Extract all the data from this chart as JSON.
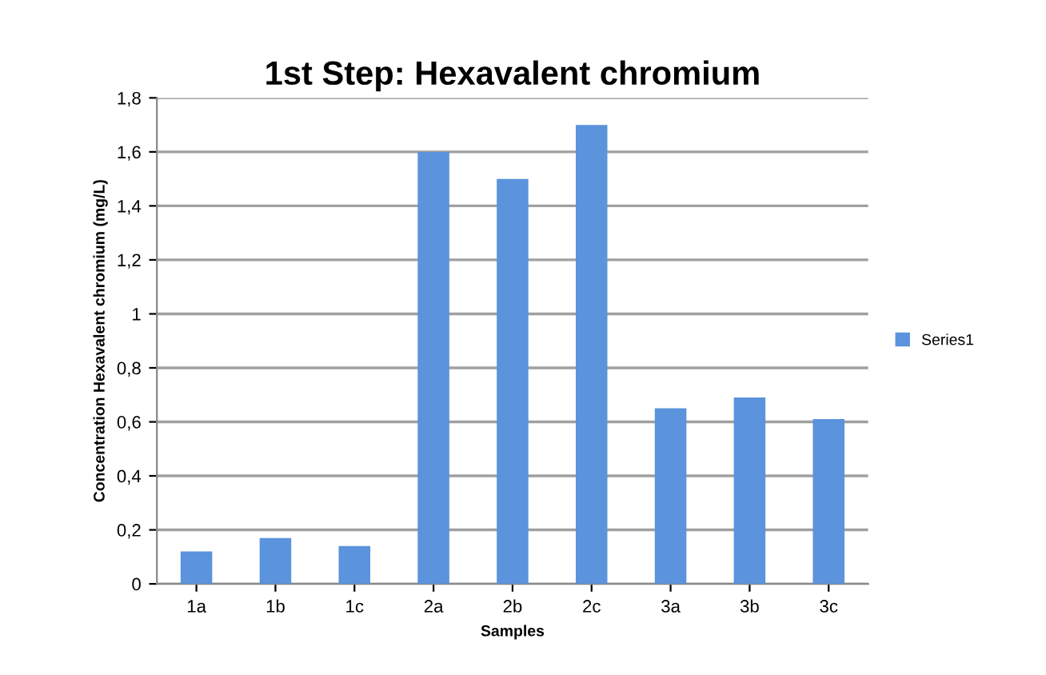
{
  "chart_data": {
    "type": "bar",
    "title": "1st Step: Hexavalent chromium",
    "xlabel": "Samples",
    "ylabel": "Concentration Hexavalent chromium (mg/L)",
    "categories": [
      "1a",
      "1b",
      "1c",
      "2a",
      "2b",
      "2c",
      "3a",
      "3b",
      "3c"
    ],
    "series": [
      {
        "name": "Series1",
        "color": "#5b93dc",
        "values": [
          0.12,
          0.17,
          0.14,
          1.6,
          1.5,
          1.7,
          0.65,
          0.69,
          0.61
        ]
      }
    ],
    "ylim": [
      0,
      1.8
    ],
    "yticks": [
      0,
      {
        "value": 0.2,
        "label": "0,2"
      },
      {
        "value": 0.4,
        "label": "0,4"
      },
      {
        "value": 0.6,
        "label": "0,6"
      },
      {
        "value": 0.8,
        "label": "0,8"
      },
      1,
      {
        "value": 1.2,
        "label": "1,2"
      },
      {
        "value": 1.4,
        "label": "1,4"
      },
      {
        "value": 1.6,
        "label": "1,6"
      },
      {
        "value": 1.8,
        "label": "1,8"
      }
    ],
    "grid": "y",
    "legend": "right"
  }
}
